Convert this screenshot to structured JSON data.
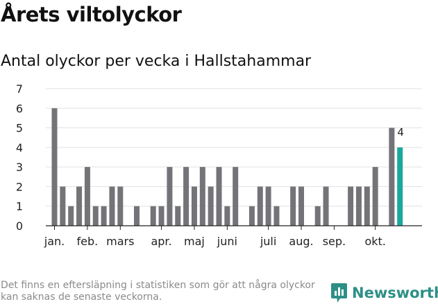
{
  "header": {
    "title": "Årets viltolyckor",
    "subtitle": "Antal olyckor per vecka i Hallstahammar"
  },
  "footer": {
    "note": "Det finns en eftersläpning i statistiken som gör att några olyckor kan saknas de senaste veckorna.",
    "brand": "Newsworthy"
  },
  "colors": {
    "bar": "#747378",
    "highlight": "#1aa79c",
    "grid": "#e1e1e1",
    "axis": "#222222",
    "brand": "#2d8f86"
  },
  "chart_data": {
    "type": "bar",
    "x": [
      1,
      2,
      3,
      4,
      5,
      6,
      7,
      8,
      9,
      10,
      11,
      12,
      13,
      14,
      15,
      16,
      17,
      18,
      19,
      20,
      21,
      22,
      23,
      24,
      25,
      26,
      27,
      28,
      29,
      30,
      31,
      32,
      33,
      34,
      35,
      36,
      37,
      38,
      39,
      40,
      41,
      42
    ],
    "values": [
      6,
      2,
      1,
      2,
      3,
      1,
      1,
      2,
      2,
      0,
      1,
      0,
      1,
      1,
      3,
      1,
      3,
      2,
      3,
      2,
      3,
      1,
      3,
      0,
      1,
      2,
      2,
      1,
      0,
      2,
      2,
      0,
      1,
      2,
      0,
      0,
      2,
      2,
      2,
      3,
      0,
      5
    ],
    "highlight": {
      "x": 43,
      "value": 4,
      "label": "4"
    },
    "ylim": [
      0,
      7
    ],
    "yticks": [
      0,
      1,
      2,
      3,
      4,
      5,
      6,
      7
    ],
    "xticks": [
      {
        "label": "jan.",
        "x": 1
      },
      {
        "label": "feb.",
        "x": 5
      },
      {
        "label": "mars",
        "x": 9
      },
      {
        "label": "apr.",
        "x": 14
      },
      {
        "label": "maj",
        "x": 18
      },
      {
        "label": "juni",
        "x": 22
      },
      {
        "label": "juli",
        "x": 27
      },
      {
        "label": "aug.",
        "x": 31
      },
      {
        "label": "sep.",
        "x": 35
      },
      {
        "label": "okt.",
        "x": 40
      }
    ],
    "grid": true
  }
}
